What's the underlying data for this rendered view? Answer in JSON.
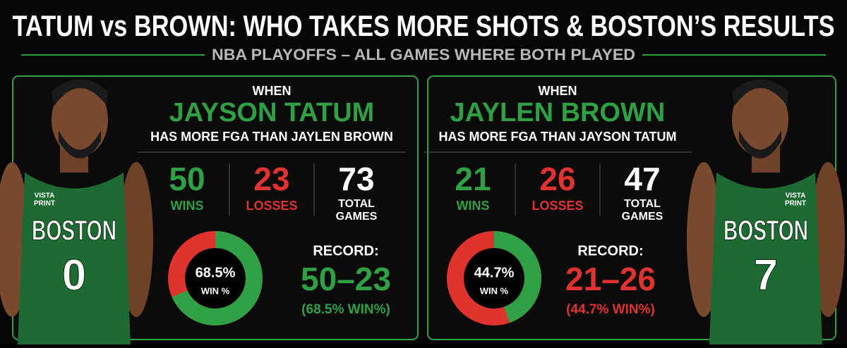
{
  "header": {
    "title": "TATUM vs BROWN: WHO TAKES MORE SHOTS & BOSTON’S RESULTS",
    "subtitle": "NBA PLAYOFFS – ALL GAMES WHERE BOTH PLAYED"
  },
  "panels": [
    {
      "when": "WHEN",
      "player": "JAYSON TATUM",
      "condition": "HAS MORE FGA THAN JAYLEN BROWN",
      "wins": 50,
      "wins_label": "WINS",
      "losses": 23,
      "losses_label": "LOSSES",
      "total": 73,
      "total_label": [
        "TOTAL",
        "GAMES"
      ],
      "win_pct": {
        "value": 68.5,
        "label": "68.5%"
      },
      "win_pct_caption": "WIN %",
      "record_label": "RECORD:",
      "record": "50–23",
      "record_sub": "(68.5% WIN%)",
      "record_color": "#2fa043",
      "jersey": {
        "team": "BOSTON",
        "number": "0",
        "sponsor": [
          "VISTA",
          "PRINT"
        ]
      }
    },
    {
      "when": "WHEN",
      "player": "JAYLEN BROWN",
      "condition": "HAS MORE FGA THAN JAYSON TATUM",
      "wins": 21,
      "wins_label": "WINS",
      "losses": 26,
      "losses_label": "LOSSES",
      "total": 47,
      "total_label": [
        "TOTAL",
        "GAMES"
      ],
      "win_pct": {
        "value": 44.7,
        "label": "44.7%"
      },
      "win_pct_caption": "WIN %",
      "record_label": "RECORD:",
      "record": "21–26",
      "record_sub": "(44.7% WIN%)",
      "record_color": "#e0322e",
      "jersey": {
        "team": "BOSTON",
        "number": "7",
        "sponsor": [
          "VISTA",
          "PRINT"
        ]
      }
    }
  ]
}
